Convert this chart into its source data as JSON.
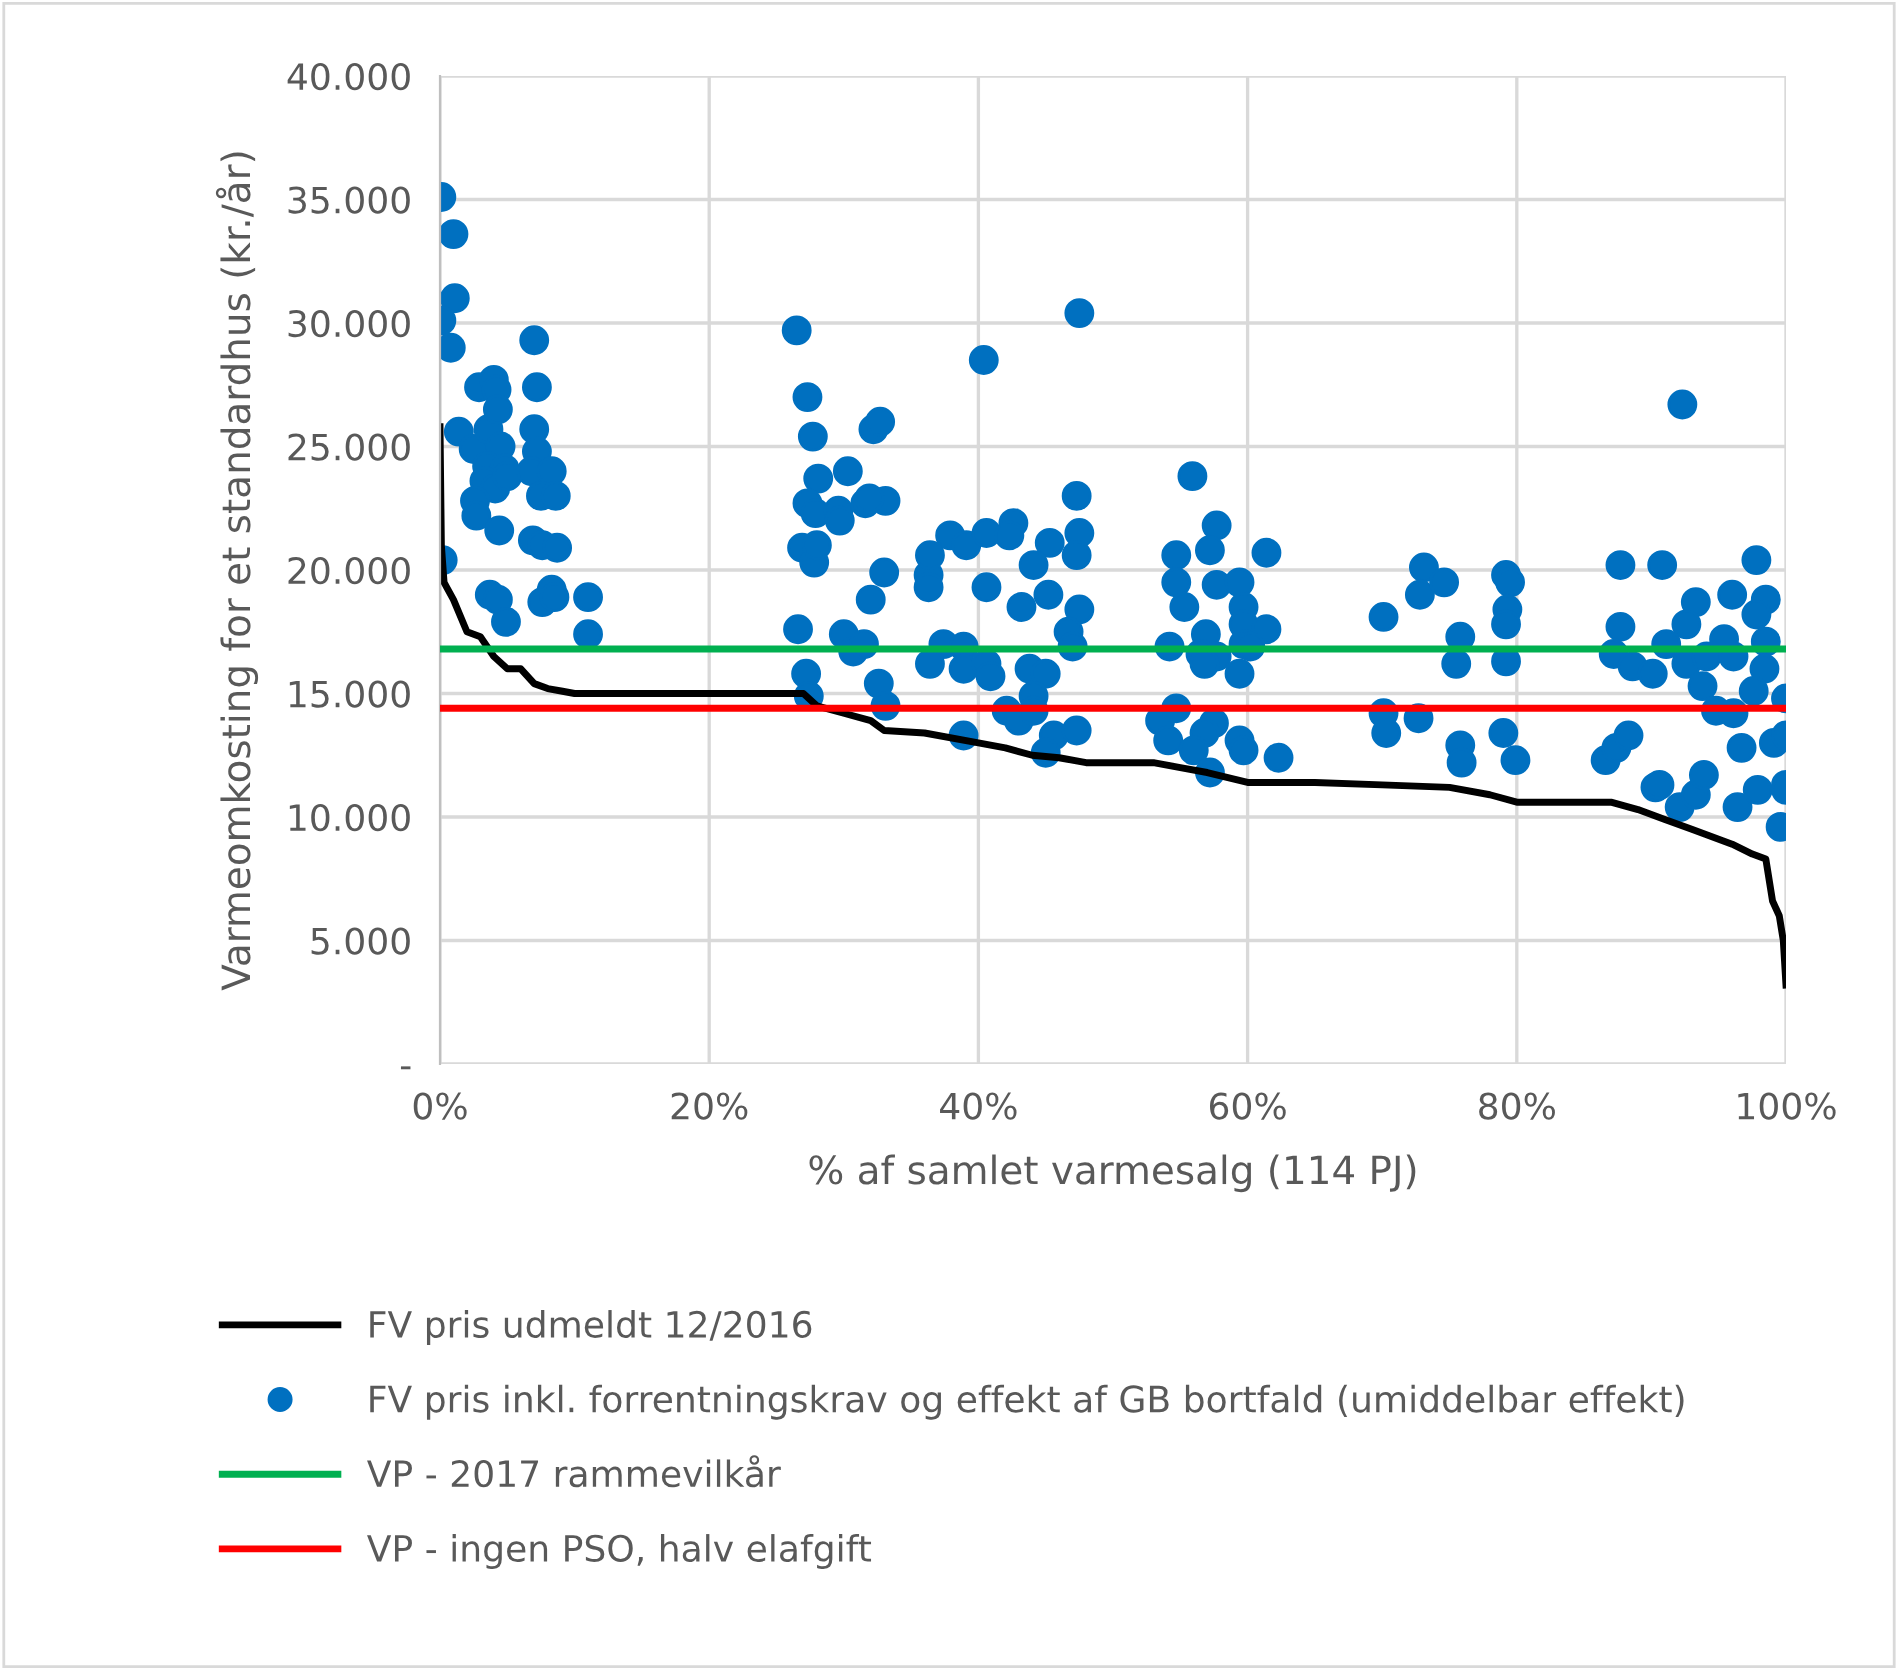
{
  "chart_data": {
    "type": "scatter",
    "xlabel": "% af samlet varmesalg (114 PJ)",
    "ylabel": "Varmeomkosting for et standardhus (kr./år)",
    "xlim": [
      0,
      100
    ],
    "ylim": [
      0,
      40000
    ],
    "xticks": [
      {
        "value": 0,
        "label": "0%"
      },
      {
        "value": 20,
        "label": "20%"
      },
      {
        "value": 40,
        "label": "40%"
      },
      {
        "value": 60,
        "label": "60%"
      },
      {
        "value": 80,
        "label": "80%"
      },
      {
        "value": 100,
        "label": "100%"
      }
    ],
    "yticks": [
      {
        "value": 0,
        "label": "-"
      },
      {
        "value": 5000,
        "label": "5.000"
      },
      {
        "value": 10000,
        "label": "10.000"
      },
      {
        "value": 15000,
        "label": "15.000"
      },
      {
        "value": 20000,
        "label": "20.000"
      },
      {
        "value": 25000,
        "label": "25.000"
      },
      {
        "value": 30000,
        "label": "30.000"
      },
      {
        "value": 35000,
        "label": "35.000"
      },
      {
        "value": 40000,
        "label": "40.000"
      }
    ],
    "grid": true,
    "legend": "bottom",
    "series": [
      {
        "name": "FV pris udmeldt 12/2016",
        "type": "line",
        "color": "#000000",
        "marker": "none",
        "line_style": "solid",
        "x": [
          0,
          0.1,
          0.3,
          0.5,
          1,
          2,
          3,
          4,
          5,
          6,
          7,
          8,
          9,
          10,
          20,
          27,
          28,
          30,
          32,
          33,
          36,
          40,
          42,
          44,
          46,
          48,
          53,
          55,
          57,
          60,
          65,
          70,
          75,
          78,
          80,
          87,
          89,
          91,
          93,
          94,
          96,
          97.5,
          98.5,
          99,
          99.5,
          99.8,
          100
        ],
        "values": [
          25800,
          21000,
          19500,
          19300,
          18800,
          17500,
          17300,
          16500,
          16000,
          16000,
          15400,
          15200,
          15100,
          15000,
          15000,
          15000,
          14500,
          14200,
          13900,
          13500,
          13400,
          13000,
          12800,
          12500,
          12400,
          12200,
          12200,
          12000,
          11800,
          11400,
          11400,
          11300,
          11200,
          10900,
          10600,
          10600,
          10300,
          9900,
          9500,
          9300,
          8900,
          8500,
          8300,
          6600,
          6000,
          5000,
          3200
        ]
      },
      {
        "name": "FV pris inkl. forrentningskrav og effekt af GB bortfald (umiddelbar effekt)",
        "color": "#0070c0",
        "marker": "circle",
        "x": [
          0.1,
          1.0,
          1.1,
          0.1,
          0.8,
          2.9,
          0.2,
          1.4,
          2.5,
          3.6,
          4.0,
          4.2,
          4.3,
          4.5,
          3.5,
          4.8,
          3.3,
          4.1,
          2.6,
          5.0,
          2.7,
          4.4,
          3.7,
          4.3,
          4.9,
          7.0,
          7.2,
          7.0,
          7.2,
          6.8,
          8.3,
          7.5,
          8.6,
          6.9,
          7.6,
          8.7,
          7.6,
          8.3,
          8.5,
          11.0,
          11.0,
          26.5,
          27.3,
          27.7,
          28.1,
          27.3,
          27.9,
          29.6,
          26.9,
          27.8,
          28.0,
          30.3,
          32.2,
          32.7,
          31.6,
          33.1,
          29.7,
          31.9,
          26.6,
          27.2,
          27.4,
          30.0,
          30.7,
          32.0,
          33.0,
          31.5,
          32.6,
          33.1,
          36.3,
          36.3,
          47.5,
          40.4,
          47.3,
          37.9,
          39.1,
          40.6,
          42.6,
          42.3,
          45.3,
          47.5,
          47.3,
          36.4,
          44.1,
          40.6,
          45.2,
          43.2,
          47.5,
          46.7,
          47.0,
          37.4,
          38.9,
          36.4,
          38.9,
          40.6,
          40.9,
          43.8,
          45.0,
          44.1,
          42.1,
          43.0,
          44.1,
          38.9,
          45.6,
          45.0,
          47.3,
          55.9,
          57.7,
          57.2,
          61.4,
          54.7,
          54.7,
          57.7,
          59.4,
          55.3,
          59.7,
          59.7,
          54.2,
          56.9,
          56.5,
          57.7,
          59.7,
          61.4,
          60.2,
          56.8,
          59.4,
          53.5,
          54.7,
          54.1,
          57.5,
          56.8,
          56.0,
          57.2,
          59.4,
          59.7,
          62.3,
          70.1,
          73.1,
          72.8,
          74.6,
          75.8,
          75.5,
          79.2,
          79.5,
          79.3,
          79.2,
          79.2,
          70.1,
          70.3,
          72.7,
          75.8,
          75.9,
          79.0,
          79.9,
          87.7,
          90.8,
          97.8,
          87.7,
          93.3,
          92.6,
          96.0,
          98.5,
          97.8,
          87.2,
          88.6,
          90.1,
          91.1,
          92.6,
          94.1,
          95.4,
          96.1,
          98.5,
          98.4,
          97.6,
          93.8,
          100,
          94.8,
          96.1,
          86.6,
          87.4,
          88.3,
          90.3,
          92.1,
          93.3,
          93.9,
          96.7,
          99.1,
          100,
          96.4,
          97.9,
          100,
          100,
          99.6,
          90.6,
          92.3
        ],
        "values": [
          35100,
          33600,
          31000,
          30100,
          29000,
          27400,
          20400,
          25600,
          24900,
          25700,
          27700,
          27300,
          26500,
          25000,
          24200,
          24100,
          23600,
          23300,
          22800,
          23800,
          22200,
          21600,
          19000,
          18800,
          17900,
          29300,
          27400,
          25700,
          24800,
          24000,
          24000,
          23000,
          23000,
          21200,
          21000,
          20900,
          18700,
          19200,
          18900,
          18900,
          17400,
          29700,
          27000,
          25400,
          23700,
          22700,
          22300,
          22400,
          20900,
          20300,
          21000,
          24000,
          25700,
          26000,
          22700,
          22800,
          22000,
          22900,
          17600,
          15800,
          14900,
          17400,
          16700,
          18800,
          19900,
          17000,
          15400,
          14500,
          19800,
          19300,
          30400,
          28500,
          23000,
          21400,
          21000,
          21500,
          21900,
          21400,
          21100,
          21500,
          20600,
          20600,
          20200,
          19300,
          19000,
          18500,
          18400,
          17500,
          16900,
          17000,
          16900,
          16200,
          16000,
          16200,
          15700,
          16000,
          15800,
          14900,
          14300,
          13900,
          14300,
          13300,
          13300,
          12600,
          13500,
          23800,
          21800,
          20800,
          20700,
          20600,
          19500,
          19400,
          19500,
          18500,
          18500,
          17800,
          16900,
          17400,
          16600,
          16500,
          17000,
          17600,
          16900,
          16200,
          15800,
          13900,
          14400,
          13100,
          13800,
          13400,
          12700,
          11800,
          13100,
          12700,
          12400,
          18100,
          20100,
          19000,
          19500,
          17300,
          16200,
          19800,
          19500,
          18400,
          17800,
          16300,
          14200,
          13400,
          14000,
          12900,
          12200,
          13400,
          12300,
          20200,
          20200,
          20400,
          17700,
          18700,
          17800,
          19000,
          18800,
          18200,
          16600,
          16100,
          15800,
          17000,
          16200,
          16500,
          17200,
          16500,
          17100,
          16000,
          15100,
          15300,
          14800,
          14300,
          14200,
          12300,
          12800,
          13300,
          11200,
          10400,
          10900,
          11700,
          12800,
          13000,
          13300,
          10400,
          11100,
          11300,
          11100,
          9600,
          11300,
          26700
        ]
      },
      {
        "name": "VP - 2017 rammevilkår",
        "type": "line",
        "color": "#00b050",
        "marker": "none",
        "line_style": "solid",
        "x": [
          0,
          100
        ],
        "values": [
          16800,
          16800
        ]
      },
      {
        "name": "VP - ingen PSO, halv elafgift",
        "type": "line",
        "color": "#ff0000",
        "marker": "none",
        "line_style": "solid",
        "x": [
          0,
          100
        ],
        "values": [
          14400,
          14400
        ]
      }
    ]
  }
}
